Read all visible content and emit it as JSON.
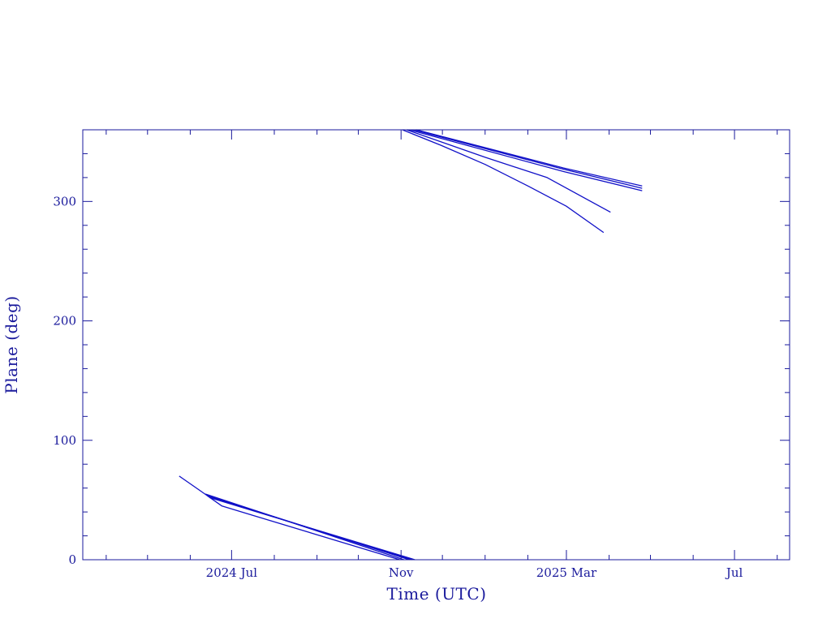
{
  "chart_data": {
    "type": "line",
    "title": "",
    "xlabel": "Time (UTC)",
    "ylabel": "Plane (deg)",
    "ylim": [
      0,
      360
    ],
    "xlim": [
      "2024-03-15",
      "2025-08-10"
    ],
    "grid": false,
    "axis_color": "#1a1a9c",
    "line_color": "#1010c8",
    "y_ticks": [
      0,
      100,
      200,
      300
    ],
    "x_ticks": [
      {
        "date": "2024-07-01",
        "label": "2024 Jul"
      },
      {
        "date": "2024-11-01",
        "label": "Nov"
      },
      {
        "date": "2025-03-01",
        "label": "2025 Mar"
      },
      {
        "date": "2025-07-01",
        "label": "Jul"
      }
    ],
    "series": [
      {
        "points": [
          [
            "2024-05-24",
            70
          ],
          [
            "2024-06-08",
            58
          ],
          [
            "2024-06-24",
            45
          ],
          [
            "2024-10-31",
            0
          ]
        ]
      },
      {
        "points": [
          [
            "2024-06-12",
            55
          ],
          [
            "2024-11-03",
            0
          ]
        ]
      },
      {
        "points": [
          [
            "2024-06-13",
            54
          ],
          [
            "2024-11-07",
            0
          ]
        ]
      },
      {
        "points": [
          [
            "2024-06-14",
            53
          ],
          [
            "2024-11-09",
            0
          ]
        ]
      },
      {
        "points": [
          [
            "2024-06-15",
            52
          ],
          [
            "2024-11-11",
            0
          ]
        ]
      },
      {
        "points": [
          [
            "2024-11-02",
            360
          ],
          [
            "2024-11-30",
            347
          ],
          [
            "2025-01-01",
            331
          ],
          [
            "2025-02-01",
            313
          ],
          [
            "2025-03-01",
            296
          ],
          [
            "2025-03-28",
            274
          ]
        ]
      },
      {
        "points": [
          [
            "2024-11-05",
            360
          ],
          [
            "2025-01-01",
            337
          ],
          [
            "2025-02-15",
            320
          ],
          [
            "2025-04-02",
            291
          ]
        ]
      },
      {
        "points": [
          [
            "2024-11-07",
            360
          ],
          [
            "2025-02-27",
            325
          ],
          [
            "2025-04-25",
            309
          ]
        ]
      },
      {
        "points": [
          [
            "2024-11-10",
            360
          ],
          [
            "2025-02-27",
            327
          ],
          [
            "2025-04-25",
            311
          ]
        ]
      },
      {
        "points": [
          [
            "2024-11-12",
            360
          ],
          [
            "2025-02-27",
            328
          ],
          [
            "2025-04-25",
            313
          ]
        ]
      }
    ]
  }
}
